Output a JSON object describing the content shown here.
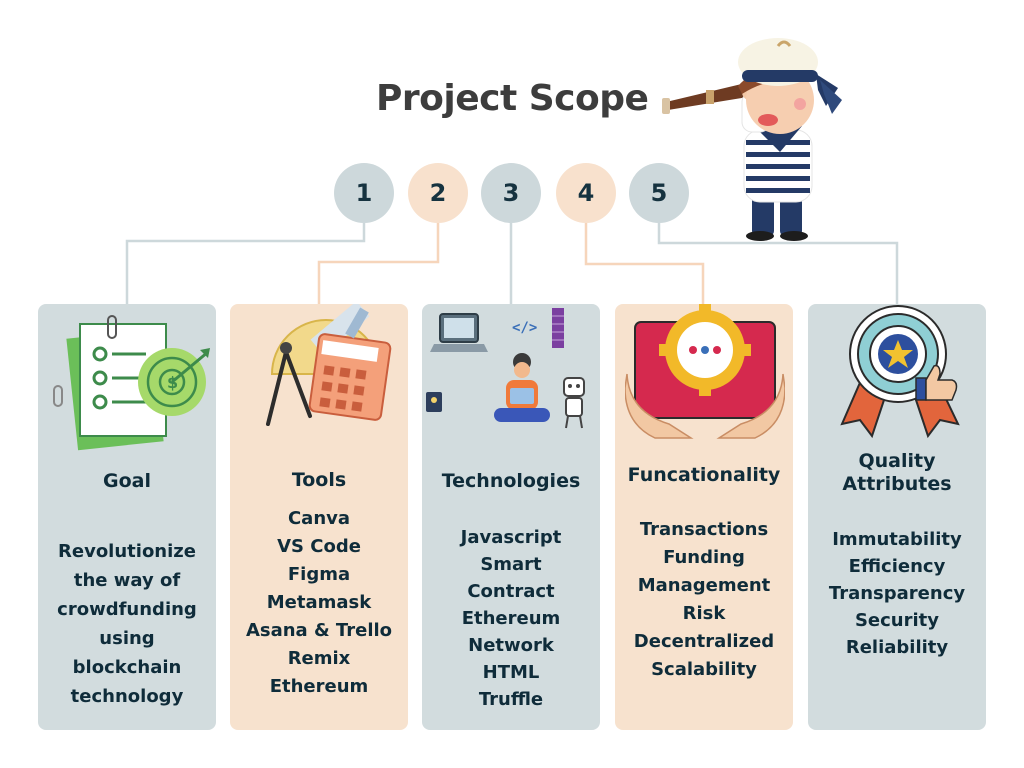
{
  "title": "Project Scope",
  "colors": {
    "gray": "#d2dcde",
    "peach": "#f7e2ce",
    "text": "#0f2c3a",
    "line": "#cdd8db",
    "line_peach": "#f6d5bb"
  },
  "steps": [
    "1",
    "2",
    "3",
    "4",
    "5"
  ],
  "cards": [
    {
      "title": "Goal",
      "lines": [
        "Revolutionize",
        "the way of",
        "crowdfunding",
        "using",
        "blockchain",
        "technology"
      ],
      "icon": "checklist-target-icon"
    },
    {
      "title": "Tools",
      "lines": [
        "Canva",
        "VS Code",
        "Figma",
        "Metamask",
        "Asana & Trello",
        "Remix",
        "Ethereum"
      ],
      "icon": "calculator-compass-icon"
    },
    {
      "title": "Technologies",
      "lines": [
        "Javascript",
        "Smart",
        "Contract",
        "Ethereum",
        "Network",
        "HTML",
        "Truffle"
      ],
      "icon": "developer-laptop-icon"
    },
    {
      "title": "Funcationality",
      "lines": [
        "Transactions",
        "Funding",
        "Management",
        "Risk",
        "Decentralized",
        "Scalability"
      ],
      "icon": "hands-gear-monitor-icon"
    },
    {
      "title_lines": [
        "Quality",
        "Attributes"
      ],
      "lines": [
        "Immutability",
        "Efficiency",
        "Transparency",
        "Security",
        "Reliability"
      ],
      "icon": "award-badge-icon"
    }
  ]
}
